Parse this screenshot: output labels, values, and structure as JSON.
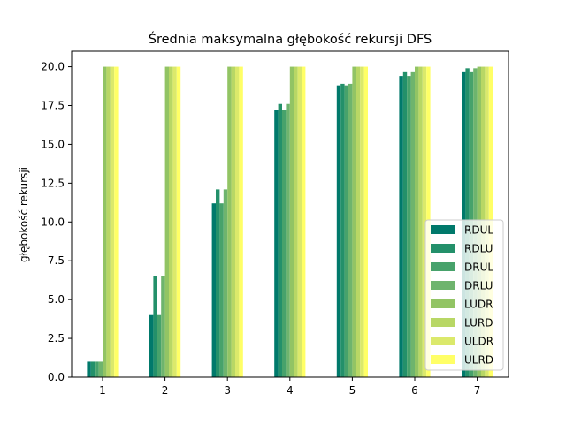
{
  "chart_data": {
    "type": "bar",
    "title": "Średnia maksymalna głębokość rekursji DFS",
    "xlabel": "",
    "ylabel": "głębokość rekursji",
    "categories": [
      "1",
      "2",
      "3",
      "4",
      "5",
      "6",
      "7"
    ],
    "ylim": [
      0,
      21
    ],
    "yticks": [
      "0.0",
      "2.5",
      "5.0",
      "7.5",
      "10.0",
      "12.5",
      "15.0",
      "17.5",
      "20.0"
    ],
    "grid": false,
    "legend_position": "lower-right",
    "series": [
      {
        "name": "RDUL",
        "color": "#00796b",
        "values": [
          1.0,
          4.0,
          11.2,
          17.2,
          18.8,
          19.4,
          19.7
        ]
      },
      {
        "name": "RDLU",
        "color": "#23906a",
        "values": [
          1.0,
          6.5,
          12.1,
          17.6,
          18.9,
          19.7,
          19.9
        ]
      },
      {
        "name": "DRUL",
        "color": "#47a26b",
        "values": [
          1.0,
          4.0,
          11.2,
          17.2,
          18.8,
          19.4,
          19.7
        ]
      },
      {
        "name": "DRLU",
        "color": "#6eb46d",
        "values": [
          1.0,
          6.5,
          12.1,
          17.6,
          18.9,
          19.7,
          19.9
        ]
      },
      {
        "name": "LUDR",
        "color": "#92c464",
        "values": [
          20.0,
          20.0,
          20.0,
          20.0,
          20.0,
          20.0,
          20.0
        ]
      },
      {
        "name": "LURD",
        "color": "#b8d765",
        "values": [
          20.0,
          20.0,
          20.0,
          20.0,
          20.0,
          20.0,
          20.0
        ]
      },
      {
        "name": "ULDR",
        "color": "#dbe96b",
        "values": [
          20.0,
          20.0,
          20.0,
          20.0,
          20.0,
          20.0,
          20.0
        ]
      },
      {
        "name": "ULRD",
        "color": "#ffff66",
        "values": [
          20.0,
          20.0,
          20.0,
          20.0,
          20.0,
          20.0,
          20.0
        ]
      }
    ]
  }
}
